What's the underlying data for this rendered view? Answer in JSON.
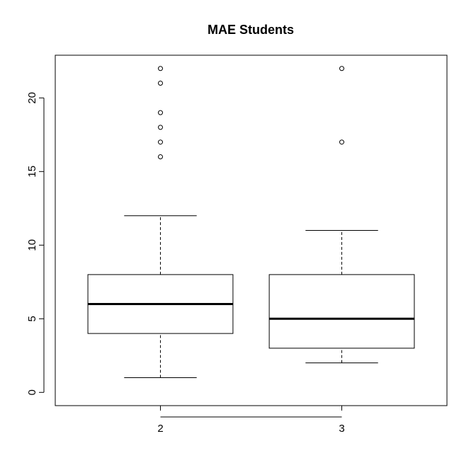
{
  "chart_data": {
    "type": "boxplot",
    "title": "MAE Students",
    "xlabel": "",
    "ylabel": "",
    "categories": [
      "2",
      "3"
    ],
    "ylim": [
      -0.9,
      22.9
    ],
    "yticks": [
      0,
      5,
      10,
      15,
      20
    ],
    "grid": false,
    "boxes": [
      {
        "category": "2",
        "whisker_low": 1,
        "q1": 4,
        "median": 6,
        "q3": 8,
        "whisker_high": 12,
        "outliers": [
          16,
          17,
          18,
          19,
          21,
          22
        ]
      },
      {
        "category": "3",
        "whisker_low": 2,
        "q1": 3,
        "median": 5,
        "q3": 8,
        "whisker_high": 11,
        "outliers": [
          17,
          22
        ]
      }
    ]
  },
  "colors": {
    "stroke": "#000000",
    "background": "#ffffff"
  }
}
